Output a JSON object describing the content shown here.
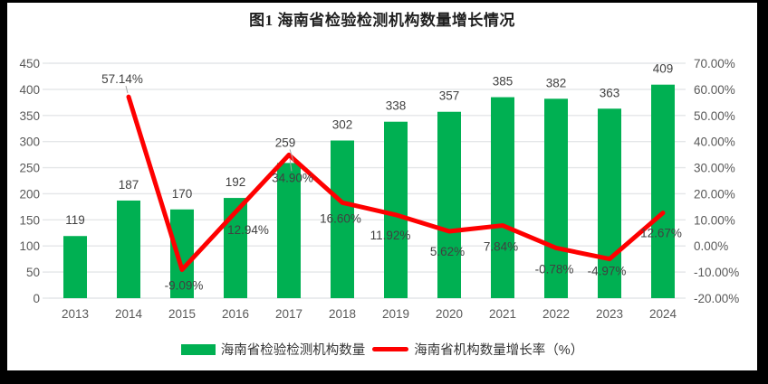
{
  "frame": {
    "background": "#000000",
    "chart_background": "#FFFFFF"
  },
  "chart_data": {
    "type": "bar",
    "combo": "bar+line",
    "title": "图1 海南省检验检测机构数量增长情况",
    "categories": [
      "2013",
      "2014",
      "2015",
      "2016",
      "2017",
      "2018",
      "2019",
      "2020",
      "2021",
      "2022",
      "2023",
      "2024"
    ],
    "series": [
      {
        "name": "海南省检验检测机构数量",
        "chart_type": "bar",
        "axis": "left",
        "color": "#00B052",
        "values": [
          119,
          187,
          170,
          192,
          259,
          302,
          338,
          357,
          385,
          382,
          363,
          409
        ],
        "value_labels": [
          "119",
          "187",
          "170",
          "192",
          "259",
          "302",
          "338",
          "357",
          "385",
          "382",
          "363",
          "409"
        ]
      },
      {
        "name": "海南省机构数量增长率（%）",
        "chart_type": "line",
        "axis": "right",
        "color": "#FE0000",
        "values": [
          null,
          57.14,
          -9.09,
          12.94,
          34.9,
          16.6,
          11.92,
          5.62,
          7.84,
          -0.78,
          -4.97,
          12.67
        ],
        "point_labels": [
          "",
          "57.14%",
          "-9.09%",
          "12.94%",
          "34.90%",
          "16.60%",
          "11.92%",
          "5.62%",
          "7.84%",
          "-0.78%",
          "-4.97%",
          "12.67%"
        ],
        "label_offsets": [
          null,
          [
            -7,
            -15
          ],
          [
            2,
            22
          ],
          [
            14,
            24
          ],
          [
            4,
            30
          ],
          [
            -2,
            22
          ],
          [
            -6,
            27
          ],
          [
            -2,
            27
          ],
          [
            -2,
            28
          ],
          [
            -2,
            28
          ],
          [
            -3,
            18
          ],
          [
            -2,
            27
          ]
        ]
      }
    ],
    "left_axis": {
      "min": 0,
      "max": 450,
      "step": 50,
      "tick_labels": [
        "450",
        "400",
        "350",
        "300",
        "250",
        "200",
        "150",
        "100",
        "50",
        "0"
      ]
    },
    "right_axis": {
      "min": -20,
      "max": 70,
      "step": 10,
      "tick_labels": [
        "70.00%",
        "60.00%",
        "50.00%",
        "40.00%",
        "30.00%",
        "20.00%",
        "10.00%",
        "0.00%",
        "-10.00%",
        "-20.00%"
      ]
    },
    "grid": true,
    "legend_position": "bottom",
    "annotation_hints": {
      "bar_label_raised_index": 4,
      "leader_line_indices_line": [
        1,
        4
      ],
      "leader_line_index_bar": 4
    },
    "colors": {
      "bar": "#00B052",
      "line": "#FE0000",
      "gridline": "#E4E6E8",
      "axis_text": "#595959",
      "data_label_text": "#404040",
      "leader": "#A6A6A6"
    }
  }
}
